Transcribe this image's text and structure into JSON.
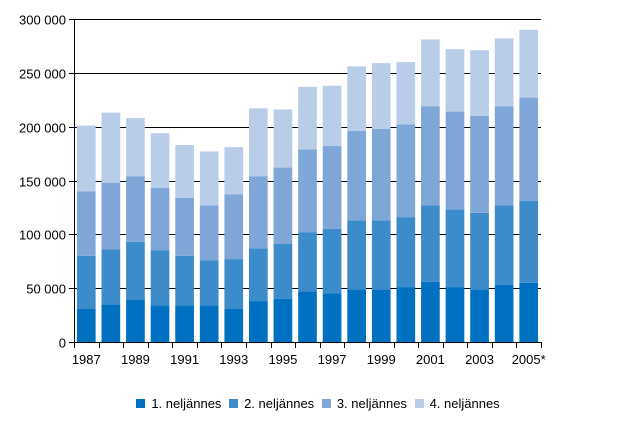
{
  "chart_data": {
    "type": "bar",
    "stacked": true,
    "title": "",
    "xlabel": "",
    "ylabel": "",
    "ylim": [
      0,
      300000
    ],
    "yticks": [
      0,
      50000,
      100000,
      150000,
      200000,
      250000,
      300000
    ],
    "ytick_labels": [
      "0",
      "50 000",
      "100 000",
      "150 000",
      "200 000",
      "250 000",
      "300 000"
    ],
    "grid": true,
    "legend_position": "bottom",
    "categories": [
      "1987",
      "1988",
      "1989",
      "1990",
      "1991",
      "1992",
      "1993",
      "1994",
      "1995",
      "1996",
      "1997",
      "1998",
      "1999",
      "2000",
      "2001",
      "2002",
      "2003",
      "2004",
      "2005*"
    ],
    "xtick_labels": [
      "1987",
      "",
      "1989",
      "",
      "1991",
      "",
      "1993",
      "",
      "1995",
      "",
      "1997",
      "",
      "1999",
      "",
      "2001",
      "",
      "2003",
      "",
      "2005*"
    ],
    "series": [
      {
        "name": "1. neljännes",
        "color": "#0070c0",
        "values": [
          31000,
          35000,
          39000,
          34000,
          34000,
          34000,
          31000,
          38000,
          40000,
          47000,
          45000,
          49000,
          49000,
          51000,
          56000,
          51000,
          49000,
          53000,
          55000
        ]
      },
      {
        "name": "2. neljännes",
        "color": "#3c8bcb",
        "values": [
          49000,
          51000,
          54000,
          51000,
          46000,
          42000,
          46000,
          49000,
          51000,
          55000,
          60000,
          64000,
          64000,
          65000,
          71000,
          72000,
          71000,
          74000,
          76000
        ]
      },
      {
        "name": "3. neljännes",
        "color": "#7ea7d8",
        "values": [
          60000,
          62000,
          61000,
          58000,
          54000,
          51000,
          60000,
          67000,
          71000,
          77000,
          77000,
          83000,
          85000,
          86000,
          92000,
          91000,
          90000,
          92000,
          96000
        ]
      },
      {
        "name": "4. neljännes",
        "color": "#b9cde9",
        "values": [
          61000,
          65000,
          54000,
          51000,
          49000,
          50000,
          44000,
          63000,
          54000,
          58000,
          56000,
          60000,
          61000,
          58000,
          62000,
          58000,
          61000,
          63000,
          63000
        ]
      }
    ]
  },
  "legend": {
    "items": [
      {
        "label": "1. neljännes",
        "color": "#0070c0"
      },
      {
        "label": "2. neljännes",
        "color": "#3c8bcb"
      },
      {
        "label": "3. neljännes",
        "color": "#7ea7d8"
      },
      {
        "label": "4. neljännes",
        "color": "#b9cde9"
      }
    ]
  }
}
